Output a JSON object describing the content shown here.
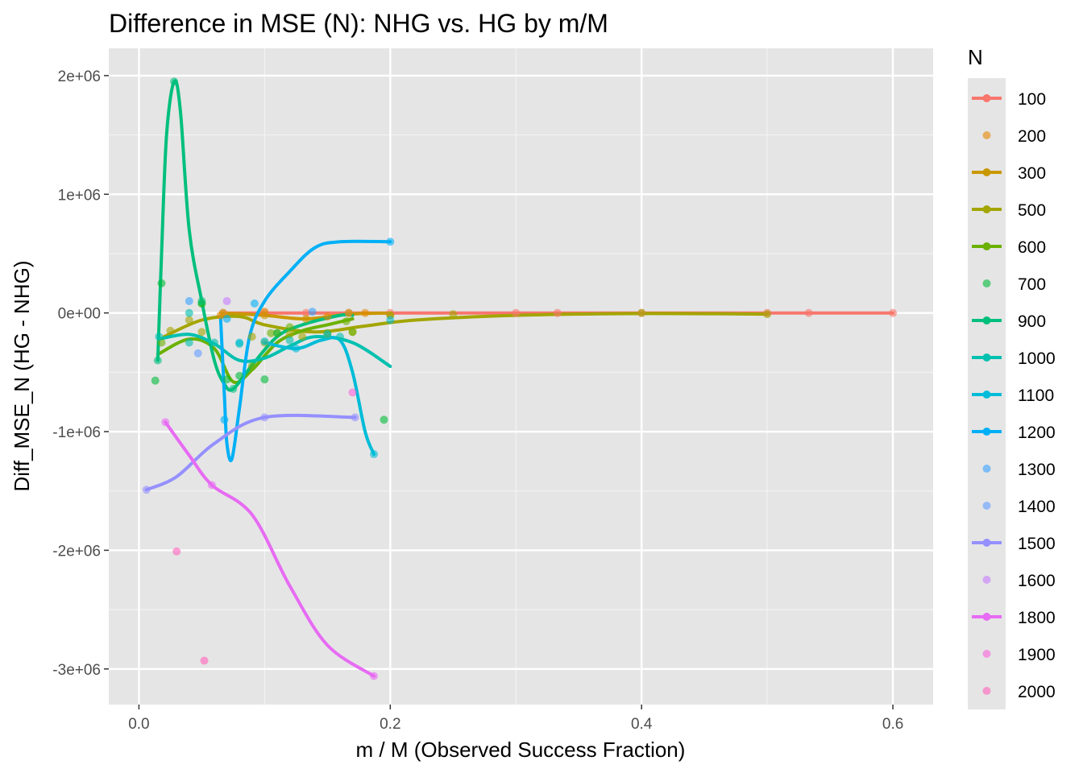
{
  "chart_data": {
    "type": "scatter",
    "title": "Difference in MSE (N): NHG vs. HG by m/M",
    "xlabel": "m / M (Observed Success Fraction)",
    "ylabel": "Diff_MSE_N (HG - NHG)",
    "xlim": [
      -0.024,
      0.632
    ],
    "ylim": [
      -3300000,
      2230000
    ],
    "x_ticks": [
      0.0,
      0.2,
      0.4,
      0.6
    ],
    "x_tick_labels": [
      "0.0",
      "0.2",
      "0.4",
      "0.6"
    ],
    "y_ticks": [
      -3000000,
      -2000000,
      -1000000,
      0,
      1000000,
      2000000
    ],
    "y_tick_labels": [
      "-3e+06",
      "-2e+06",
      "-1e+06",
      "0e+00",
      "1e+06",
      "2e+06"
    ],
    "background": "#e5e5e5",
    "grid": true,
    "legend_title": "N",
    "legend_position": "right",
    "series": [
      {
        "name": "100",
        "color": "#F8766D",
        "line": true,
        "points": [
          [
            0.067,
            0
          ],
          [
            0.1,
            0
          ],
          [
            0.133,
            0
          ],
          [
            0.167,
            0
          ],
          [
            0.2,
            0
          ],
          [
            0.3,
            0
          ],
          [
            0.333,
            0
          ],
          [
            0.4,
            0
          ],
          [
            0.5,
            0
          ],
          [
            0.533,
            0
          ],
          [
            0.6,
            0
          ]
        ],
        "curve": [
          [
            0.067,
            0
          ],
          [
            0.2,
            0
          ],
          [
            0.4,
            0
          ],
          [
            0.6,
            0
          ]
        ]
      },
      {
        "name": "200",
        "color": "#E58700",
        "line": false,
        "points": [
          [
            0.065,
            -20000
          ],
          [
            0.1,
            10000
          ],
          [
            0.15,
            -30000
          ],
          [
            0.18,
            0
          ]
        ],
        "curve": []
      },
      {
        "name": "300",
        "color": "#C99800",
        "line": true,
        "points": [
          [
            0.067,
            0
          ],
          [
            0.1,
            -20000
          ],
          [
            0.133,
            -50000
          ],
          [
            0.167,
            0
          ],
          [
            0.2,
            -20000
          ]
        ],
        "curve": [
          [
            0.067,
            0
          ],
          [
            0.1,
            -20000
          ],
          [
            0.133,
            -50000
          ],
          [
            0.167,
            -10000
          ],
          [
            0.2,
            0
          ]
        ]
      },
      {
        "name": "500",
        "color": "#A3A500",
        "line": true,
        "points": [
          [
            0.025,
            -150000
          ],
          [
            0.04,
            -60000
          ],
          [
            0.05,
            -160000
          ],
          [
            0.09,
            -200000
          ],
          [
            0.1,
            -250000
          ],
          [
            0.11,
            -170000
          ],
          [
            0.12,
            -180000
          ],
          [
            0.13,
            -200000
          ],
          [
            0.15,
            -180000
          ],
          [
            0.17,
            -160000
          ],
          [
            0.2,
            -20000
          ],
          [
            0.25,
            -10000
          ],
          [
            0.4,
            0
          ],
          [
            0.5,
            -10000
          ]
        ],
        "curve": [
          [
            0.02,
            -200000
          ],
          [
            0.05,
            -60000
          ],
          [
            0.08,
            -30000
          ],
          [
            0.1,
            -100000
          ],
          [
            0.14,
            -160000
          ],
          [
            0.18,
            -110000
          ],
          [
            0.22,
            -60000
          ],
          [
            0.3,
            -20000
          ],
          [
            0.4,
            -5000
          ],
          [
            0.5,
            -10000
          ]
        ]
      },
      {
        "name": "600",
        "color": "#6BB100",
        "line": true,
        "points": [
          [
            0.018,
            -250000
          ],
          [
            0.05,
            80000
          ],
          [
            0.09,
            -450000
          ],
          [
            0.105,
            -170000
          ],
          [
            0.12,
            -120000
          ],
          [
            0.15,
            -170000
          ],
          [
            0.165,
            -70000
          ],
          [
            0.17,
            -160000
          ]
        ],
        "curve": [
          [
            0.015,
            -350000
          ],
          [
            0.04,
            -220000
          ],
          [
            0.06,
            -300000
          ],
          [
            0.075,
            -580000
          ],
          [
            0.09,
            -480000
          ],
          [
            0.11,
            -250000
          ],
          [
            0.13,
            -150000
          ],
          [
            0.15,
            -100000
          ],
          [
            0.17,
            -50000
          ]
        ]
      },
      {
        "name": "700",
        "color": "#00BA38",
        "line": false,
        "points": [
          [
            0.013,
            -570000
          ],
          [
            0.018,
            250000
          ],
          [
            0.05,
            80000
          ],
          [
            0.07,
            -560000
          ],
          [
            0.08,
            -530000
          ],
          [
            0.1,
            -560000
          ],
          [
            0.11,
            -170000
          ],
          [
            0.195,
            -900000
          ]
        ],
        "curve": []
      },
      {
        "name": "900",
        "color": "#00BF7D",
        "line": true,
        "points": [
          [
            0.015,
            -400000
          ],
          [
            0.028,
            1950000
          ],
          [
            0.05,
            100000
          ],
          [
            0.075,
            -640000
          ]
        ],
        "curve": [
          [
            0.015,
            -400000
          ],
          [
            0.018,
            500000
          ],
          [
            0.022,
            1500000
          ],
          [
            0.028,
            1950000
          ],
          [
            0.033,
            1700000
          ],
          [
            0.04,
            700000
          ],
          [
            0.05,
            100000
          ],
          [
            0.06,
            -400000
          ],
          [
            0.068,
            -600000
          ],
          [
            0.075,
            -640000
          ],
          [
            0.09,
            -440000
          ],
          [
            0.11,
            -200000
          ],
          [
            0.13,
            -100000
          ],
          [
            0.16,
            -20000
          ],
          [
            0.17,
            -20000
          ]
        ]
      },
      {
        "name": "1000",
        "color": "#00C0AF",
        "line": true,
        "points": [
          [
            0.016,
            -200000
          ],
          [
            0.04,
            0
          ],
          [
            0.04,
            -250000
          ],
          [
            0.06,
            -250000
          ],
          [
            0.08,
            -260000
          ],
          [
            0.12,
            -230000
          ],
          [
            0.16,
            -200000
          ]
        ],
        "curve": [
          [
            0.016,
            -220000
          ],
          [
            0.04,
            -180000
          ],
          [
            0.06,
            -260000
          ],
          [
            0.08,
            -400000
          ],
          [
            0.1,
            -380000
          ],
          [
            0.12,
            -280000
          ],
          [
            0.14,
            -200000
          ],
          [
            0.17,
            -250000
          ],
          [
            0.2,
            -450000
          ]
        ]
      },
      {
        "name": "1100",
        "color": "#00BCD8",
        "line": true,
        "points": [
          [
            0.08,
            -250000
          ],
          [
            0.1,
            -240000
          ],
          [
            0.125,
            -300000
          ],
          [
            0.15,
            -180000
          ],
          [
            0.187,
            -1190000
          ],
          [
            0.2,
            -60000
          ]
        ],
        "curve": [
          [
            0.1,
            -250000
          ],
          [
            0.125,
            -300000
          ],
          [
            0.145,
            -230000
          ],
          [
            0.16,
            -230000
          ],
          [
            0.17,
            -500000
          ],
          [
            0.18,
            -1000000
          ],
          [
            0.187,
            -1190000
          ]
        ]
      },
      {
        "name": "1200",
        "color": "#00B0F6",
        "line": true,
        "points": [
          [
            0.068,
            -900000
          ],
          [
            0.07,
            -50000
          ],
          [
            0.092,
            80000
          ],
          [
            0.2,
            600000
          ]
        ],
        "curve": [
          [
            0.065,
            -50000
          ],
          [
            0.068,
            -700000
          ],
          [
            0.07,
            -1100000
          ],
          [
            0.074,
            -1230000
          ],
          [
            0.08,
            -800000
          ],
          [
            0.088,
            -200000
          ],
          [
            0.1,
            100000
          ],
          [
            0.12,
            350000
          ],
          [
            0.14,
            550000
          ],
          [
            0.16,
            600000
          ],
          [
            0.2,
            600000
          ]
        ]
      },
      {
        "name": "1300",
        "color": "#35A2FF",
        "line": false,
        "points": [
          [
            0.04,
            100000
          ],
          [
            0.138,
            10000
          ]
        ],
        "curve": []
      },
      {
        "name": "1400",
        "color": "#619CFF",
        "line": false,
        "points": [
          [
            0.047,
            -340000
          ]
        ],
        "curve": []
      },
      {
        "name": "1500",
        "color": "#9590FF",
        "line": true,
        "points": [
          [
            0.006,
            -1490000
          ],
          [
            0.1,
            -880000
          ],
          [
            0.172,
            -880000
          ]
        ],
        "curve": [
          [
            0.006,
            -1490000
          ],
          [
            0.03,
            -1380000
          ],
          [
            0.06,
            -1100000
          ],
          [
            0.1,
            -880000
          ],
          [
            0.172,
            -880000
          ]
        ]
      },
      {
        "name": "1600",
        "color": "#C77CFF",
        "line": false,
        "points": [
          [
            0.07,
            100000
          ]
        ],
        "curve": []
      },
      {
        "name": "1800",
        "color": "#E76BF3",
        "line": true,
        "points": [
          [
            0.021,
            -920000
          ],
          [
            0.058,
            -1450000
          ],
          [
            0.187,
            -3060000
          ]
        ],
        "curve": [
          [
            0.021,
            -920000
          ],
          [
            0.04,
            -1200000
          ],
          [
            0.058,
            -1450000
          ],
          [
            0.09,
            -1700000
          ],
          [
            0.12,
            -2300000
          ],
          [
            0.15,
            -2800000
          ],
          [
            0.187,
            -3060000
          ]
        ]
      },
      {
        "name": "1900",
        "color": "#FA62DB",
        "line": false,
        "points": [
          [
            0.17,
            -670000
          ]
        ],
        "curve": []
      },
      {
        "name": "2000",
        "color": "#FF62BC",
        "line": false,
        "points": [
          [
            0.03,
            -2010000
          ],
          [
            0.052,
            -2930000
          ]
        ],
        "curve": []
      }
    ]
  }
}
